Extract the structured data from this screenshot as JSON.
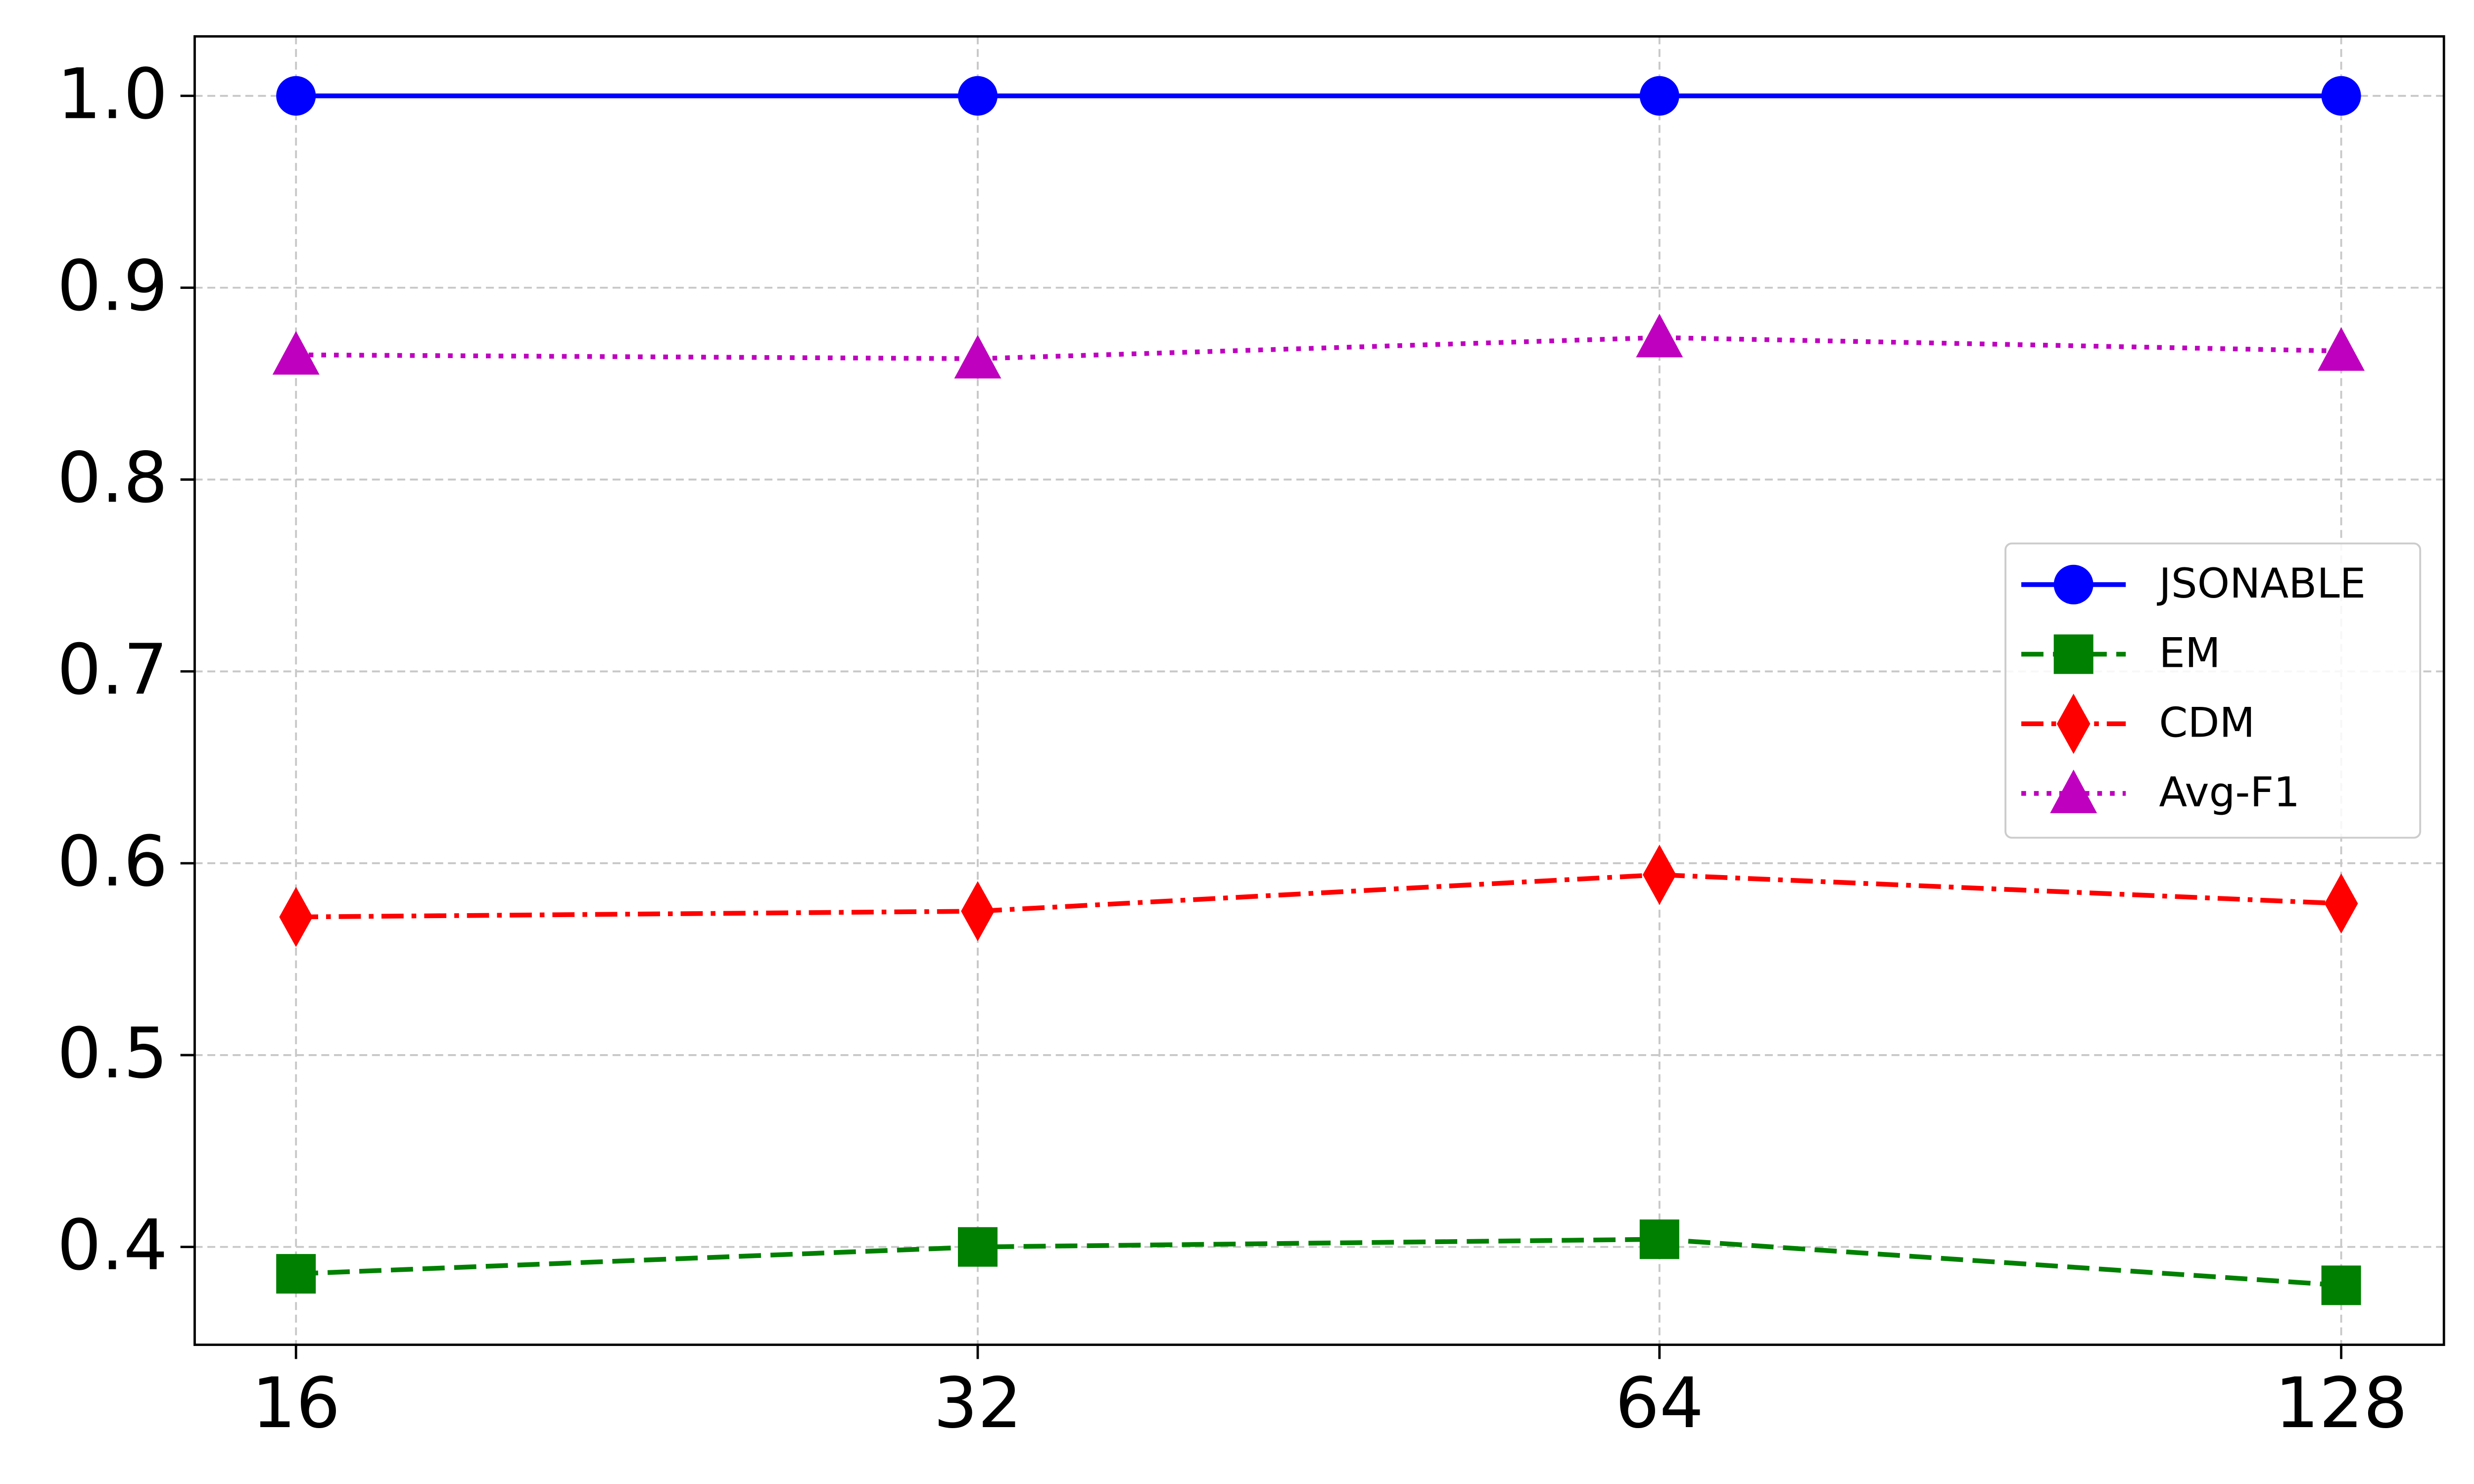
{
  "chart_data": {
    "type": "line",
    "categories": [
      "16",
      "32",
      "64",
      "128"
    ],
    "series": [
      {
        "name": "JSONABLE",
        "color": "#0000ff",
        "marker": "circle",
        "linestyle": "solid",
        "values": [
          1.0,
          1.0,
          1.0,
          1.0
        ]
      },
      {
        "name": "EM",
        "color": "#008000",
        "marker": "square",
        "linestyle": "dashed",
        "values": [
          0.386,
          0.4,
          0.404,
          0.38
        ]
      },
      {
        "name": "CDM",
        "color": "#ff0000",
        "marker": "thin_diamond",
        "linestyle": "dashdot",
        "values": [
          0.572,
          0.575,
          0.594,
          0.579
        ]
      },
      {
        "name": "Avg-F1",
        "color": "#bf00bf",
        "marker": "triangle",
        "linestyle": "dotted",
        "values": [
          0.865,
          0.863,
          0.874,
          0.867
        ]
      }
    ],
    "ylim": [
      0.349,
      1.031
    ],
    "yticks": [
      0.4,
      0.5,
      0.6,
      0.7,
      0.8,
      0.9,
      {
        "value": 1,
        "label": "1.0"
      }
    ],
    "grid": true,
    "legend": "center right"
  }
}
